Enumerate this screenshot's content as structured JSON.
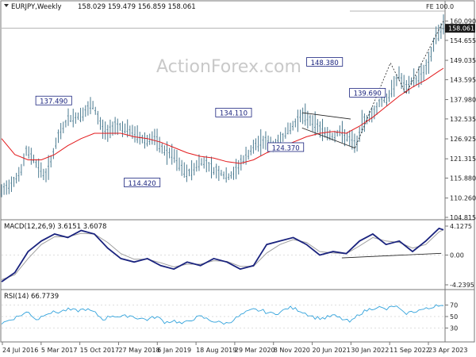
{
  "chart_data": {
    "type": "line",
    "header": {
      "symbol": "EURJPY,Weekly",
      "ohlc": "158.029 159.479 156.859 158.061"
    },
    "watermark": "ActionForex.com",
    "x_ticks": [
      "24 Jul 2016",
      "5 Mar 2017",
      "15 Oct 2017",
      "27 May 2018",
      "6 Jan 2019",
      "18 Aug 2019",
      "29 Mar 2020",
      "8 Nov 2020",
      "20 Jun 2021",
      "30 Jan 2022",
      "11 Sep 2022",
      "23 Apr 2023"
    ],
    "main": {
      "y_ticks": [
        "160.090",
        "154.655",
        "149.035",
        "143.595",
        "137.980",
        "132.535",
        "126.925",
        "121.315",
        "115.880",
        "110.260",
        "104.815"
      ],
      "ylim": [
        104.815,
        162.0
      ],
      "last_price": "158.061",
      "fe_label": "FE 100.0",
      "fe_level": 162.1,
      "hline_level": 158.06,
      "annotations": [
        {
          "text": "137.490",
          "value": 137.49,
          "x": 0.118
        },
        {
          "text": "114.420",
          "value": 114.42,
          "x": 0.318
        },
        {
          "text": "134.110",
          "value": 134.11,
          "x": 0.525
        },
        {
          "text": "124.370",
          "value": 124.37,
          "x": 0.643
        },
        {
          "text": "148.380",
          "value": 148.38,
          "x": 0.731
        },
        {
          "text": "139.690",
          "value": 139.69,
          "x": 0.828
        }
      ],
      "price": [
        [
          0.0,
          112.0
        ],
        [
          0.015,
          113.5
        ],
        [
          0.03,
          115.5
        ],
        [
          0.045,
          118.0
        ],
        [
          0.055,
          123.5
        ],
        [
          0.07,
          122.0
        ],
        [
          0.085,
          118.5
        ],
        [
          0.1,
          116.5
        ],
        [
          0.115,
          122.0
        ],
        [
          0.13,
          128.0
        ],
        [
          0.15,
          132.5
        ],
        [
          0.17,
          133.0
        ],
        [
          0.19,
          134.5
        ],
        [
          0.205,
          136.5
        ],
        [
          0.215,
          134.0
        ],
        [
          0.225,
          130.5
        ],
        [
          0.24,
          128.5
        ],
        [
          0.255,
          131.0
        ],
        [
          0.275,
          130.0
        ],
        [
          0.3,
          128.5
        ],
        [
          0.315,
          127.0
        ],
        [
          0.33,
          126.5
        ],
        [
          0.345,
          127.5
        ],
        [
          0.36,
          124.5
        ],
        [
          0.375,
          123.0
        ],
        [
          0.39,
          122.0
        ],
        [
          0.405,
          119.0
        ],
        [
          0.42,
          117.0
        ],
        [
          0.435,
          118.5
        ],
        [
          0.45,
          120.5
        ],
        [
          0.465,
          120.0
        ],
        [
          0.48,
          118.0
        ],
        [
          0.495,
          117.5
        ],
        [
          0.51,
          116.0
        ],
        [
          0.525,
          117.0
        ],
        [
          0.54,
          120.0
        ],
        [
          0.555,
          122.0
        ],
        [
          0.57,
          124.5
        ],
        [
          0.585,
          126.0
        ],
        [
          0.6,
          126.5
        ],
        [
          0.615,
          125.0
        ],
        [
          0.63,
          126.5
        ],
        [
          0.645,
          129.0
        ],
        [
          0.66,
          130.5
        ],
        [
          0.675,
          133.5
        ],
        [
          0.69,
          133.0
        ],
        [
          0.705,
          131.5
        ],
        [
          0.72,
          130.0
        ],
        [
          0.735,
          128.5
        ],
        [
          0.75,
          127.5
        ],
        [
          0.765,
          129.0
        ],
        [
          0.78,
          127.5
        ],
        [
          0.795,
          126.0
        ],
        [
          0.805,
          125.5
        ],
        [
          0.815,
          131.0
        ],
        [
          0.83,
          133.0
        ],
        [
          0.845,
          134.5
        ],
        [
          0.86,
          138.5
        ],
        [
          0.875,
          138.0
        ],
        [
          0.89,
          143.0
        ],
        [
          0.9,
          145.0
        ],
        [
          0.91,
          142.0
        ],
        [
          0.92,
          141.0
        ],
        [
          0.93,
          144.0
        ],
        [
          0.94,
          143.5
        ],
        [
          0.95,
          145.5
        ],
        [
          0.96,
          146.5
        ],
        [
          0.97,
          150.0
        ],
        [
          0.98,
          154.5
        ],
        [
          0.99,
          157.0
        ],
        [
          1.0,
          158.5
        ]
      ],
      "ma": [
        [
          0.0,
          127.0
        ],
        [
          0.03,
          122.5
        ],
        [
          0.06,
          121.0
        ],
        [
          0.09,
          121.0
        ],
        [
          0.12,
          122.5
        ],
        [
          0.15,
          125.0
        ],
        [
          0.18,
          127.0
        ],
        [
          0.21,
          128.5
        ],
        [
          0.24,
          128.5
        ],
        [
          0.27,
          128.5
        ],
        [
          0.3,
          127.5
        ],
        [
          0.33,
          127.0
        ],
        [
          0.36,
          126.0
        ],
        [
          0.39,
          124.5
        ],
        [
          0.42,
          123.0
        ],
        [
          0.45,
          122.0
        ],
        [
          0.48,
          121.5
        ],
        [
          0.51,
          120.5
        ],
        [
          0.54,
          120.0
        ],
        [
          0.57,
          121.0
        ],
        [
          0.6,
          123.0
        ],
        [
          0.63,
          124.5
        ],
        [
          0.66,
          126.0
        ],
        [
          0.69,
          127.5
        ],
        [
          0.72,
          128.5
        ],
        [
          0.75,
          129.0
        ],
        [
          0.78,
          128.5
        ],
        [
          0.81,
          130.5
        ],
        [
          0.84,
          133.0
        ],
        [
          0.87,
          136.0
        ],
        [
          0.9,
          139.0
        ],
        [
          0.93,
          141.5
        ],
        [
          0.96,
          143.5
        ],
        [
          0.99,
          146.0
        ],
        [
          1.0,
          146.8
        ]
      ]
    },
    "macd": {
      "label": "MACD(12,26,9) 3.6151 3.6078",
      "y_ticks": [
        "4.1275",
        "0.00",
        "-4.2395"
      ],
      "ylim": [
        -4.2395,
        4.1275
      ],
      "macd": [
        [
          0.0,
          -3.8
        ],
        [
          0.03,
          -2.5
        ],
        [
          0.06,
          0.5
        ],
        [
          0.09,
          2.0
        ],
        [
          0.12,
          3.0
        ],
        [
          0.15,
          2.5
        ],
        [
          0.18,
          3.5
        ],
        [
          0.21,
          3.0
        ],
        [
          0.24,
          1.0
        ],
        [
          0.27,
          -0.5
        ],
        [
          0.3,
          -1.0
        ],
        [
          0.33,
          -0.5
        ],
        [
          0.36,
          -1.5
        ],
        [
          0.39,
          -2.0
        ],
        [
          0.42,
          -1.0
        ],
        [
          0.45,
          -1.5
        ],
        [
          0.48,
          -0.5
        ],
        [
          0.51,
          -1.0
        ],
        [
          0.54,
          -2.0
        ],
        [
          0.57,
          -1.5
        ],
        [
          0.6,
          1.5
        ],
        [
          0.63,
          2.0
        ],
        [
          0.66,
          2.5
        ],
        [
          0.69,
          1.5
        ],
        [
          0.72,
          0.0
        ],
        [
          0.75,
          0.5
        ],
        [
          0.78,
          0.2
        ],
        [
          0.81,
          2.0
        ],
        [
          0.84,
          3.0
        ],
        [
          0.87,
          1.5
        ],
        [
          0.9,
          2.0
        ],
        [
          0.93,
          0.5
        ],
        [
          0.96,
          2.0
        ],
        [
          0.99,
          3.8
        ],
        [
          1.0,
          3.6
        ]
      ],
      "signal": [
        [
          0.0,
          -3.5
        ],
        [
          0.03,
          -2.8
        ],
        [
          0.06,
          -0.5
        ],
        [
          0.09,
          1.5
        ],
        [
          0.12,
          2.6
        ],
        [
          0.15,
          2.6
        ],
        [
          0.18,
          3.1
        ],
        [
          0.21,
          3.0
        ],
        [
          0.24,
          1.8
        ],
        [
          0.27,
          0.2
        ],
        [
          0.3,
          -0.6
        ],
        [
          0.33,
          -0.6
        ],
        [
          0.36,
          -1.1
        ],
        [
          0.39,
          -1.7
        ],
        [
          0.42,
          -1.3
        ],
        [
          0.45,
          -1.3
        ],
        [
          0.48,
          -0.8
        ],
        [
          0.51,
          -0.9
        ],
        [
          0.54,
          -1.6
        ],
        [
          0.57,
          -1.6
        ],
        [
          0.6,
          0.3
        ],
        [
          0.63,
          1.5
        ],
        [
          0.66,
          2.2
        ],
        [
          0.69,
          1.8
        ],
        [
          0.72,
          0.5
        ],
        [
          0.75,
          0.3
        ],
        [
          0.78,
          0.2
        ],
        [
          0.81,
          1.3
        ],
        [
          0.84,
          2.5
        ],
        [
          0.87,
          2.0
        ],
        [
          0.9,
          1.8
        ],
        [
          0.93,
          1.0
        ],
        [
          0.96,
          1.5
        ],
        [
          0.99,
          3.3
        ],
        [
          1.0,
          3.6
        ]
      ]
    },
    "rsi": {
      "label": "RSI(14) 66.7739",
      "y_ticks": [
        "70",
        "50",
        "30"
      ],
      "ylim": [
        10,
        90
      ],
      "rsi": [
        [
          0.0,
          38
        ],
        [
          0.03,
          48
        ],
        [
          0.06,
          58
        ],
        [
          0.08,
          44
        ],
        [
          0.1,
          56
        ],
        [
          0.13,
          58
        ],
        [
          0.15,
          62
        ],
        [
          0.17,
          60
        ],
        [
          0.19,
          63
        ],
        [
          0.21,
          57
        ],
        [
          0.23,
          45
        ],
        [
          0.25,
          52
        ],
        [
          0.27,
          49
        ],
        [
          0.29,
          52
        ],
        [
          0.31,
          47
        ],
        [
          0.33,
          45
        ],
        [
          0.35,
          50
        ],
        [
          0.37,
          40
        ],
        [
          0.39,
          43
        ],
        [
          0.41,
          37
        ],
        [
          0.43,
          45
        ],
        [
          0.45,
          50
        ],
        [
          0.47,
          44
        ],
        [
          0.49,
          40
        ],
        [
          0.51,
          38
        ],
        [
          0.53,
          47
        ],
        [
          0.55,
          56
        ],
        [
          0.57,
          62
        ],
        [
          0.59,
          60
        ],
        [
          0.61,
          55
        ],
        [
          0.63,
          57
        ],
        [
          0.65,
          66
        ],
        [
          0.67,
          62
        ],
        [
          0.69,
          55
        ],
        [
          0.71,
          48
        ],
        [
          0.73,
          47
        ],
        [
          0.75,
          52
        ],
        [
          0.77,
          46
        ],
        [
          0.79,
          40
        ],
        [
          0.81,
          55
        ],
        [
          0.83,
          62
        ],
        [
          0.85,
          67
        ],
        [
          0.87,
          62
        ],
        [
          0.89,
          69
        ],
        [
          0.9,
          63
        ],
        [
          0.91,
          55
        ],
        [
          0.93,
          58
        ],
        [
          0.95,
          62
        ],
        [
          0.97,
          64
        ],
        [
          0.985,
          72
        ],
        [
          1.0,
          67
        ]
      ]
    },
    "colors": {
      "price": "#4a7a90",
      "ma": "#e31a1c",
      "macd": "#1a237e",
      "signal": "#9e9e9e",
      "rsi": "#33a3dc",
      "annotation": "#1a237e",
      "grid": "#bdbdbd"
    }
  }
}
